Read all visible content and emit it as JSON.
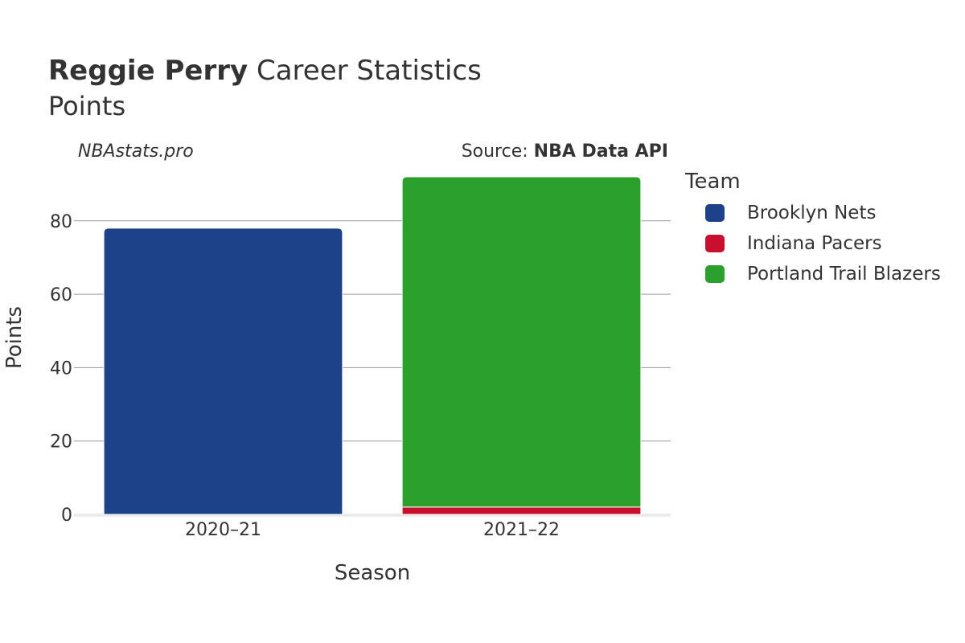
{
  "header": {
    "title_name": "Reggie Perry",
    "title_rest": " Career Statistics",
    "subtitle": "Points",
    "watermark": "NBAstats.pro",
    "source_prefix": "Source: ",
    "source_name": "NBA Data API"
  },
  "legend": {
    "title": "Team",
    "items": [
      {
        "label": "Brooklyn Nets",
        "color": "#1d4289"
      },
      {
        "label": "Indiana Pacers",
        "color": "#c8102e"
      },
      {
        "label": "Portland Trail Blazers",
        "color": "#2ca02c"
      }
    ]
  },
  "chart_data": {
    "type": "bar",
    "stacked": true,
    "xlabel": "Season",
    "ylabel": "Points",
    "categories": [
      "2020–21",
      "2021–22"
    ],
    "ylim": [
      0,
      92
    ],
    "yticks": [
      0,
      20,
      40,
      60,
      80
    ],
    "grid": true,
    "legend_position": "right",
    "series": [
      {
        "name": "Brooklyn Nets",
        "color": "#1d4289",
        "values": [
          78,
          0
        ]
      },
      {
        "name": "Indiana Pacers",
        "color": "#c8102e",
        "values": [
          0,
          2
        ]
      },
      {
        "name": "Portland Trail Blazers",
        "color": "#2ca02c",
        "values": [
          0,
          90
        ]
      }
    ]
  }
}
